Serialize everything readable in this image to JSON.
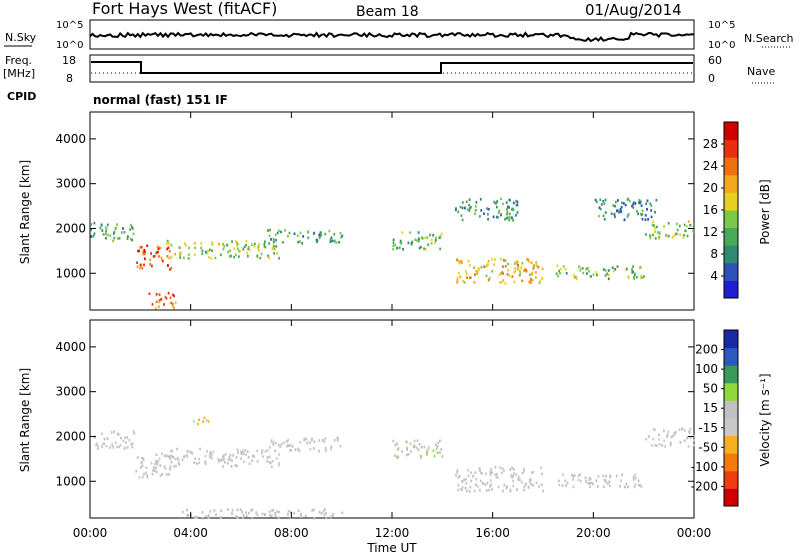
{
  "header": {
    "station": "Fort Hays West (fitACF)",
    "beam": "Beam 18",
    "date": "01/Aug/2014"
  },
  "strip": {
    "nsky_label": "N.Sky",
    "nsearch_label": "N.Search",
    "noise_ticks_left": [
      "10^5",
      "10^0"
    ],
    "noise_ticks_right": [
      "10^5",
      "10^0"
    ],
    "freq_label": "Freq.",
    "freq_unit": "[MHz]",
    "freq_ticks": [
      "18",
      "8"
    ],
    "nave_label": "Nave",
    "nave_ticks": [
      "60",
      "0"
    ],
    "cpid_label": "CPID",
    "cpid_text": "normal (fast) 151 IF"
  },
  "colors": {
    "power": [
      "#1f1fd0",
      "#2b53b8",
      "#2e8a70",
      "#4aa85a",
      "#7cc84a",
      "#e8d020",
      "#f4a820",
      "#f07010",
      "#e83010",
      "#d00000"
    ],
    "velocity": [
      "#d00000",
      "#f03a10",
      "#f47a10",
      "#f4b020",
      "#c8c8c8",
      "#c0c0c0",
      "#90d840",
      "#3a9a5a",
      "#2a5abf",
      "#1a2aa0"
    ]
  },
  "chart_data": [
    {
      "type": "heatmap",
      "panel": "power",
      "xlabel": "",
      "ylabel": "Slant Range [km]",
      "x_ticks": [
        "00:00",
        "04:00",
        "08:00",
        "12:00",
        "16:00",
        "20:00",
        "00:00"
      ],
      "xlim_hours": [
        0,
        24
      ],
      "y_ticks": [
        "4000",
        "3000",
        "2000",
        "1000"
      ],
      "ylim_km": [
        180,
        4600
      ],
      "colorbar": {
        "label": "Power [dB]",
        "ticks": [
          "28",
          "24",
          "20",
          "16",
          "12",
          "8",
          "4"
        ],
        "range": [
          0,
          30
        ]
      },
      "regions": [
        {
          "t0": 0.0,
          "t1": 1.8,
          "r0": 1750,
          "r1": 2150,
          "value": 10
        },
        {
          "t0": 1.8,
          "t1": 3.2,
          "r0": 1100,
          "r1": 1650,
          "value": 24
        },
        {
          "t0": 2.2,
          "t1": 3.4,
          "r0": 250,
          "r1": 600,
          "value": 22
        },
        {
          "t0": 3.0,
          "t1": 7.5,
          "r0": 1350,
          "r1": 1750,
          "value": 14
        },
        {
          "t0": 7.0,
          "t1": 10.0,
          "r0": 1700,
          "r1": 2000,
          "value": 10
        },
        {
          "t0": 12.0,
          "t1": 14.0,
          "r0": 1550,
          "r1": 1950,
          "value": 12
        },
        {
          "t0": 14.5,
          "t1": 18.0,
          "r0": 800,
          "r1": 1350,
          "value": 18
        },
        {
          "t0": 18.5,
          "t1": 22.0,
          "r0": 900,
          "r1": 1200,
          "value": 12
        },
        {
          "t0": 22.0,
          "t1": 24.0,
          "r0": 1800,
          "r1": 2200,
          "value": 14
        },
        {
          "t0": 14.5,
          "t1": 17.0,
          "r0": 2200,
          "r1": 2700,
          "value": 8
        },
        {
          "t0": 20.0,
          "t1": 22.5,
          "r0": 2200,
          "r1": 2700,
          "value": 8
        }
      ]
    },
    {
      "type": "heatmap",
      "panel": "velocity",
      "xlabel": "Time UT",
      "ylabel": "Slant Range [km]",
      "x_ticks": [
        "00:00",
        "04:00",
        "08:00",
        "12:00",
        "16:00",
        "20:00",
        "00:00"
      ],
      "xlim_hours": [
        0,
        24
      ],
      "y_ticks": [
        "4000",
        "3000",
        "2000",
        "1000"
      ],
      "ylim_km": [
        180,
        4600
      ],
      "colorbar": {
        "label": "Velocity [m s⁻¹]",
        "ticks": [
          "200",
          "100",
          "50",
          "15",
          "-15",
          "-50",
          "-100",
          "-200"
        ],
        "range": [
          -250,
          250
        ]
      },
      "regions": [
        {
          "t0": 0.0,
          "t1": 1.8,
          "r0": 1750,
          "r1": 2150,
          "value": 0
        },
        {
          "t0": 1.8,
          "t1": 3.2,
          "r0": 1100,
          "r1": 1650,
          "value": 0
        },
        {
          "t0": 3.0,
          "t1": 7.5,
          "r0": 1350,
          "r1": 1750,
          "value": 0
        },
        {
          "t0": 4.0,
          "t1": 4.8,
          "r0": 2300,
          "r1": 2450,
          "value": -60
        },
        {
          "t0": 7.0,
          "t1": 10.0,
          "r0": 1700,
          "r1": 2000,
          "value": 0
        },
        {
          "t0": 12.0,
          "t1": 14.0,
          "r0": 1550,
          "r1": 1950,
          "value": 40
        },
        {
          "t0": 14.5,
          "t1": 18.0,
          "r0": 800,
          "r1": 1350,
          "value": 0
        },
        {
          "t0": 18.5,
          "t1": 22.0,
          "r0": 900,
          "r1": 1200,
          "value": 0
        },
        {
          "t0": 22.0,
          "t1": 24.0,
          "r0": 1800,
          "r1": 2200,
          "value": 0
        },
        {
          "t0": 3.5,
          "t1": 10.0,
          "r0": 200,
          "r1": 400,
          "value": 25
        }
      ]
    }
  ]
}
